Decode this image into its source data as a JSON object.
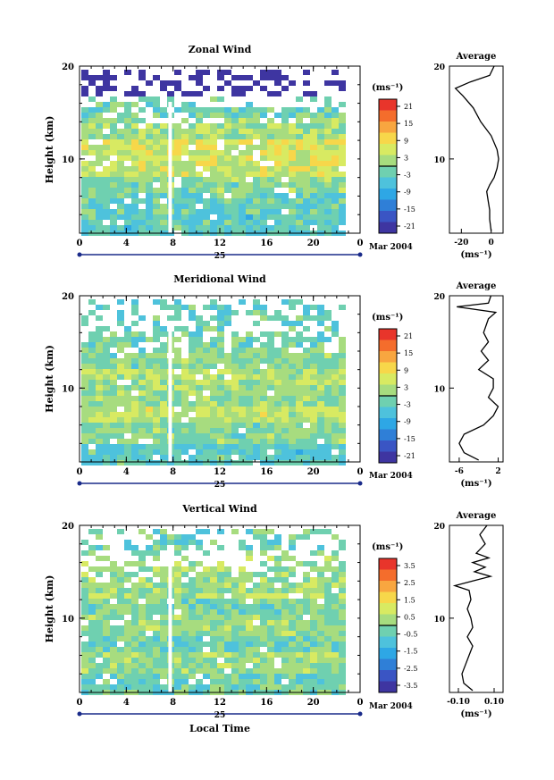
{
  "chart_data": [
    {
      "type": "heatmap",
      "title": "Zonal Wind",
      "xlabel": "",
      "ylabel": "Height (km)",
      "xlim": [
        0,
        24
      ],
      "ylim": [
        2,
        20
      ],
      "x_ticks": [
        "0",
        "4",
        "8",
        "12",
        "16",
        "20",
        "0"
      ],
      "y_ticks": [
        "20",
        "10"
      ],
      "date_day": "25",
      "date_label": "Mar 2004",
      "colorbar": {
        "unit": "(ms⁻¹)",
        "ticks": [
          "21",
          "15",
          "9",
          "3",
          "-3",
          "-9",
          "-15",
          "-21"
        ]
      },
      "rows": [
        {
          "y": 18.5,
          "value": -25
        },
        {
          "y": 15.5,
          "value": -2
        },
        {
          "y": 13.5,
          "value": 2
        },
        {
          "y": 11.5,
          "value": 6
        },
        {
          "y": 9.5,
          "value": 5
        },
        {
          "y": 7.5,
          "value": 0
        },
        {
          "y": 5.5,
          "value": -3
        },
        {
          "y": 3.5,
          "value": -4
        }
      ],
      "average": {
        "title": "Average",
        "xlabel": "(ms⁻¹)",
        "x_ticks": [
          "-20",
          "0"
        ],
        "y_ticks": [
          "20",
          "10"
        ],
        "xlim": [
          -28,
          8
        ],
        "points": [
          {
            "h": 20,
            "v": 2
          },
          {
            "h": 19,
            "v": -1
          },
          {
            "h": 18.3,
            "v": -14
          },
          {
            "h": 17.6,
            "v": -24
          },
          {
            "h": 16.8,
            "v": -19
          },
          {
            "h": 15.5,
            "v": -12
          },
          {
            "h": 14,
            "v": -7
          },
          {
            "h": 12.5,
            "v": 0
          },
          {
            "h": 11,
            "v": 4
          },
          {
            "h": 10,
            "v": 5
          },
          {
            "h": 9,
            "v": 4
          },
          {
            "h": 8,
            "v": 2
          },
          {
            "h": 7.2,
            "v": -1
          },
          {
            "h": 6.5,
            "v": -3
          },
          {
            "h": 5.5,
            "v": -2
          },
          {
            "h": 4.5,
            "v": -1
          },
          {
            "h": 3.5,
            "v": -1
          },
          {
            "h": 2.2,
            "v": 0
          }
        ]
      }
    },
    {
      "type": "heatmap",
      "title": "Meridional Wind",
      "xlabel": "",
      "ylabel": "Height (km)",
      "xlim": [
        0,
        24
      ],
      "ylim": [
        2,
        20
      ],
      "x_ticks": [
        "0",
        "4",
        "8",
        "12",
        "16",
        "20",
        "0"
      ],
      "y_ticks": [
        "20",
        "10"
      ],
      "date_day": "25",
      "date_label": "Mar 2004",
      "colorbar": {
        "unit": "(ms⁻¹)",
        "ticks": [
          "21",
          "15",
          "9",
          "3",
          "-3",
          "-9",
          "-15",
          "-21"
        ]
      },
      "rows": [
        {
          "y": 18.5,
          "value": -3
        },
        {
          "y": 15.5,
          "value": -2
        },
        {
          "y": 13.5,
          "value": 0
        },
        {
          "y": 11.5,
          "value": 3
        },
        {
          "y": 9.5,
          "value": 1
        },
        {
          "y": 7.5,
          "value": 4
        },
        {
          "y": 5.5,
          "value": 0
        },
        {
          "y": 3.5,
          "value": -4
        }
      ],
      "average": {
        "title": "Average",
        "xlabel": "(ms⁻¹)",
        "x_ticks": [
          "-6",
          "2"
        ],
        "y_ticks": [
          "20",
          "10"
        ],
        "xlim": [
          -8,
          3
        ],
        "points": [
          {
            "h": 20,
            "v": 0.5
          },
          {
            "h": 19.2,
            "v": 0
          },
          {
            "h": 18.8,
            "v": -6.5
          },
          {
            "h": 18.2,
            "v": 1.5
          },
          {
            "h": 17.5,
            "v": 0
          },
          {
            "h": 16,
            "v": -1
          },
          {
            "h": 15,
            "v": 0
          },
          {
            "h": 14,
            "v": -1.5
          },
          {
            "h": 13,
            "v": 0
          },
          {
            "h": 12,
            "v": -2
          },
          {
            "h": 11,
            "v": 1
          },
          {
            "h": 10,
            "v": 1
          },
          {
            "h": 9,
            "v": 0
          },
          {
            "h": 8,
            "v": 2
          },
          {
            "h": 7,
            "v": 1
          },
          {
            "h": 6,
            "v": -1
          },
          {
            "h": 5,
            "v": -5
          },
          {
            "h": 4,
            "v": -6
          },
          {
            "h": 3,
            "v": -5
          },
          {
            "h": 2.2,
            "v": -2
          }
        ]
      }
    },
    {
      "type": "heatmap",
      "title": "Vertical Wind",
      "xlabel": "Local Time",
      "ylabel": "Height (km)",
      "xlim": [
        0,
        24
      ],
      "ylim": [
        2,
        20
      ],
      "x_ticks": [
        "0",
        "4",
        "8",
        "12",
        "16",
        "20",
        "0"
      ],
      "y_ticks": [
        "20",
        "10"
      ],
      "date_day": "25",
      "date_label": "Mar 2004",
      "colorbar": {
        "unit": "(ms⁻¹)",
        "ticks": [
          "3.5",
          "2.5",
          "1.5",
          "0.5",
          "-0.5",
          "-1.5",
          "-2.5",
          "-3.5"
        ]
      },
      "rows": [
        {
          "y": 18.5,
          "value": -0.3
        },
        {
          "y": 15.5,
          "value": 0.2
        },
        {
          "y": 13.5,
          "value": 0.3
        },
        {
          "y": 11.5,
          "value": -0.2
        },
        {
          "y": 9.5,
          "value": 0.1
        },
        {
          "y": 7.5,
          "value": -0.3
        },
        {
          "y": 5.5,
          "value": 0.2
        },
        {
          "y": 3.5,
          "value": -0.4
        }
      ],
      "average": {
        "title": "Average",
        "xlabel": "(ms⁻¹)",
        "x_ticks": [
          "-0.10",
          "0.10"
        ],
        "y_ticks": [
          "20",
          "10"
        ],
        "xlim": [
          -0.15,
          0.15
        ],
        "points": [
          {
            "h": 20,
            "v": 0.06
          },
          {
            "h": 19,
            "v": 0.02
          },
          {
            "h": 18,
            "v": 0.05
          },
          {
            "h": 17,
            "v": 0.0
          },
          {
            "h": 16.5,
            "v": 0.07
          },
          {
            "h": 16,
            "v": -0.02
          },
          {
            "h": 15.5,
            "v": 0.05
          },
          {
            "h": 15,
            "v": -0.01
          },
          {
            "h": 14.5,
            "v": 0.08
          },
          {
            "h": 14,
            "v": -0.02
          },
          {
            "h": 13.5,
            "v": -0.12
          },
          {
            "h": 13,
            "v": -0.04
          },
          {
            "h": 12,
            "v": -0.03
          },
          {
            "h": 11,
            "v": -0.05
          },
          {
            "h": 10,
            "v": -0.03
          },
          {
            "h": 9,
            "v": -0.02
          },
          {
            "h": 8,
            "v": -0.05
          },
          {
            "h": 7,
            "v": -0.02
          },
          {
            "h": 6,
            "v": -0.04
          },
          {
            "h": 5,
            "v": -0.06
          },
          {
            "h": 4,
            "v": -0.08
          },
          {
            "h": 3,
            "v": -0.07
          },
          {
            "h": 2.2,
            "v": -0.02
          }
        ]
      }
    }
  ]
}
